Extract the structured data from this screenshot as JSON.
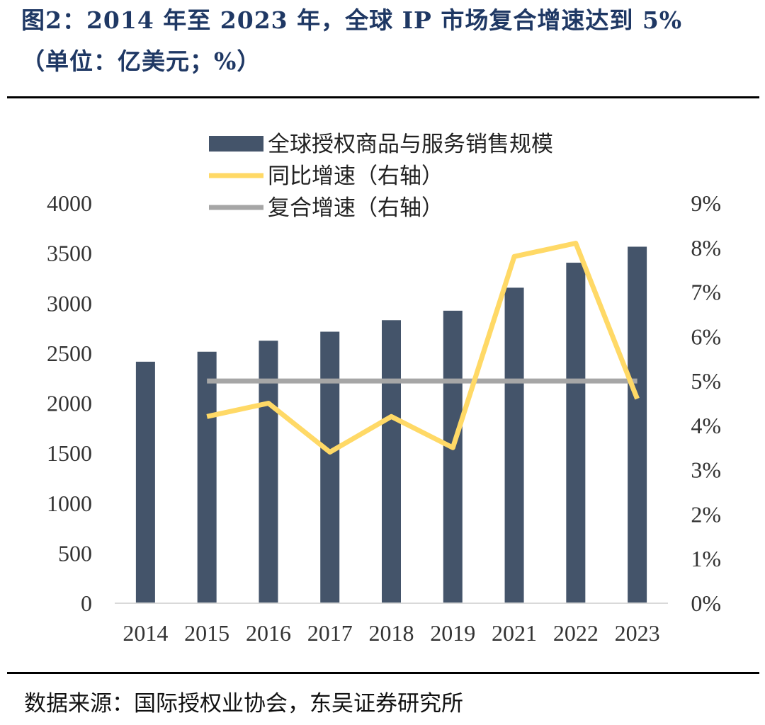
{
  "title": {
    "line1": "图2：2014 年至 2023 年，全球 IP 市场复合增速达到 5%",
    "line2": "（单位：亿美元；%）"
  },
  "source": "数据来源：国际授权业协会，东吴证券研究所",
  "colors": {
    "bar": "#44546a",
    "yoy": "#ffd966",
    "cagr": "#a6a6a6"
  },
  "chart_data": {
    "type": "bar",
    "categories": [
      "2014",
      "2015",
      "2016",
      "2017",
      "2018",
      "2019",
      "2021",
      "2022",
      "2023"
    ],
    "series": [
      {
        "name": "全球授权商品与服务销售规模",
        "type": "bar",
        "axis": "left",
        "values": [
          2415,
          2515,
          2625,
          2715,
          2830,
          2925,
          3155,
          3405,
          3565
        ]
      },
      {
        "name": "同比增速（右轴）",
        "type": "line",
        "axis": "right",
        "values": [
          null,
          4.2,
          4.5,
          3.4,
          4.2,
          3.5,
          7.8,
          8.1,
          4.6
        ]
      },
      {
        "name": "复合增速（右轴）",
        "type": "line",
        "axis": "right",
        "values": [
          null,
          5.0,
          5.0,
          5.0,
          5.0,
          5.0,
          5.0,
          5.0,
          5.0
        ]
      }
    ],
    "y_left": {
      "min": 0,
      "max": 4000,
      "ticks": [
        "0",
        "500",
        "1000",
        "1500",
        "2000",
        "2500",
        "3000",
        "3500",
        "4000"
      ]
    },
    "y_right": {
      "min": 0,
      "max": 9,
      "ticks": [
        "0%",
        "1%",
        "2%",
        "3%",
        "4%",
        "5%",
        "6%",
        "7%",
        "8%",
        "9%"
      ]
    },
    "legend": "top-center",
    "grid": false
  }
}
